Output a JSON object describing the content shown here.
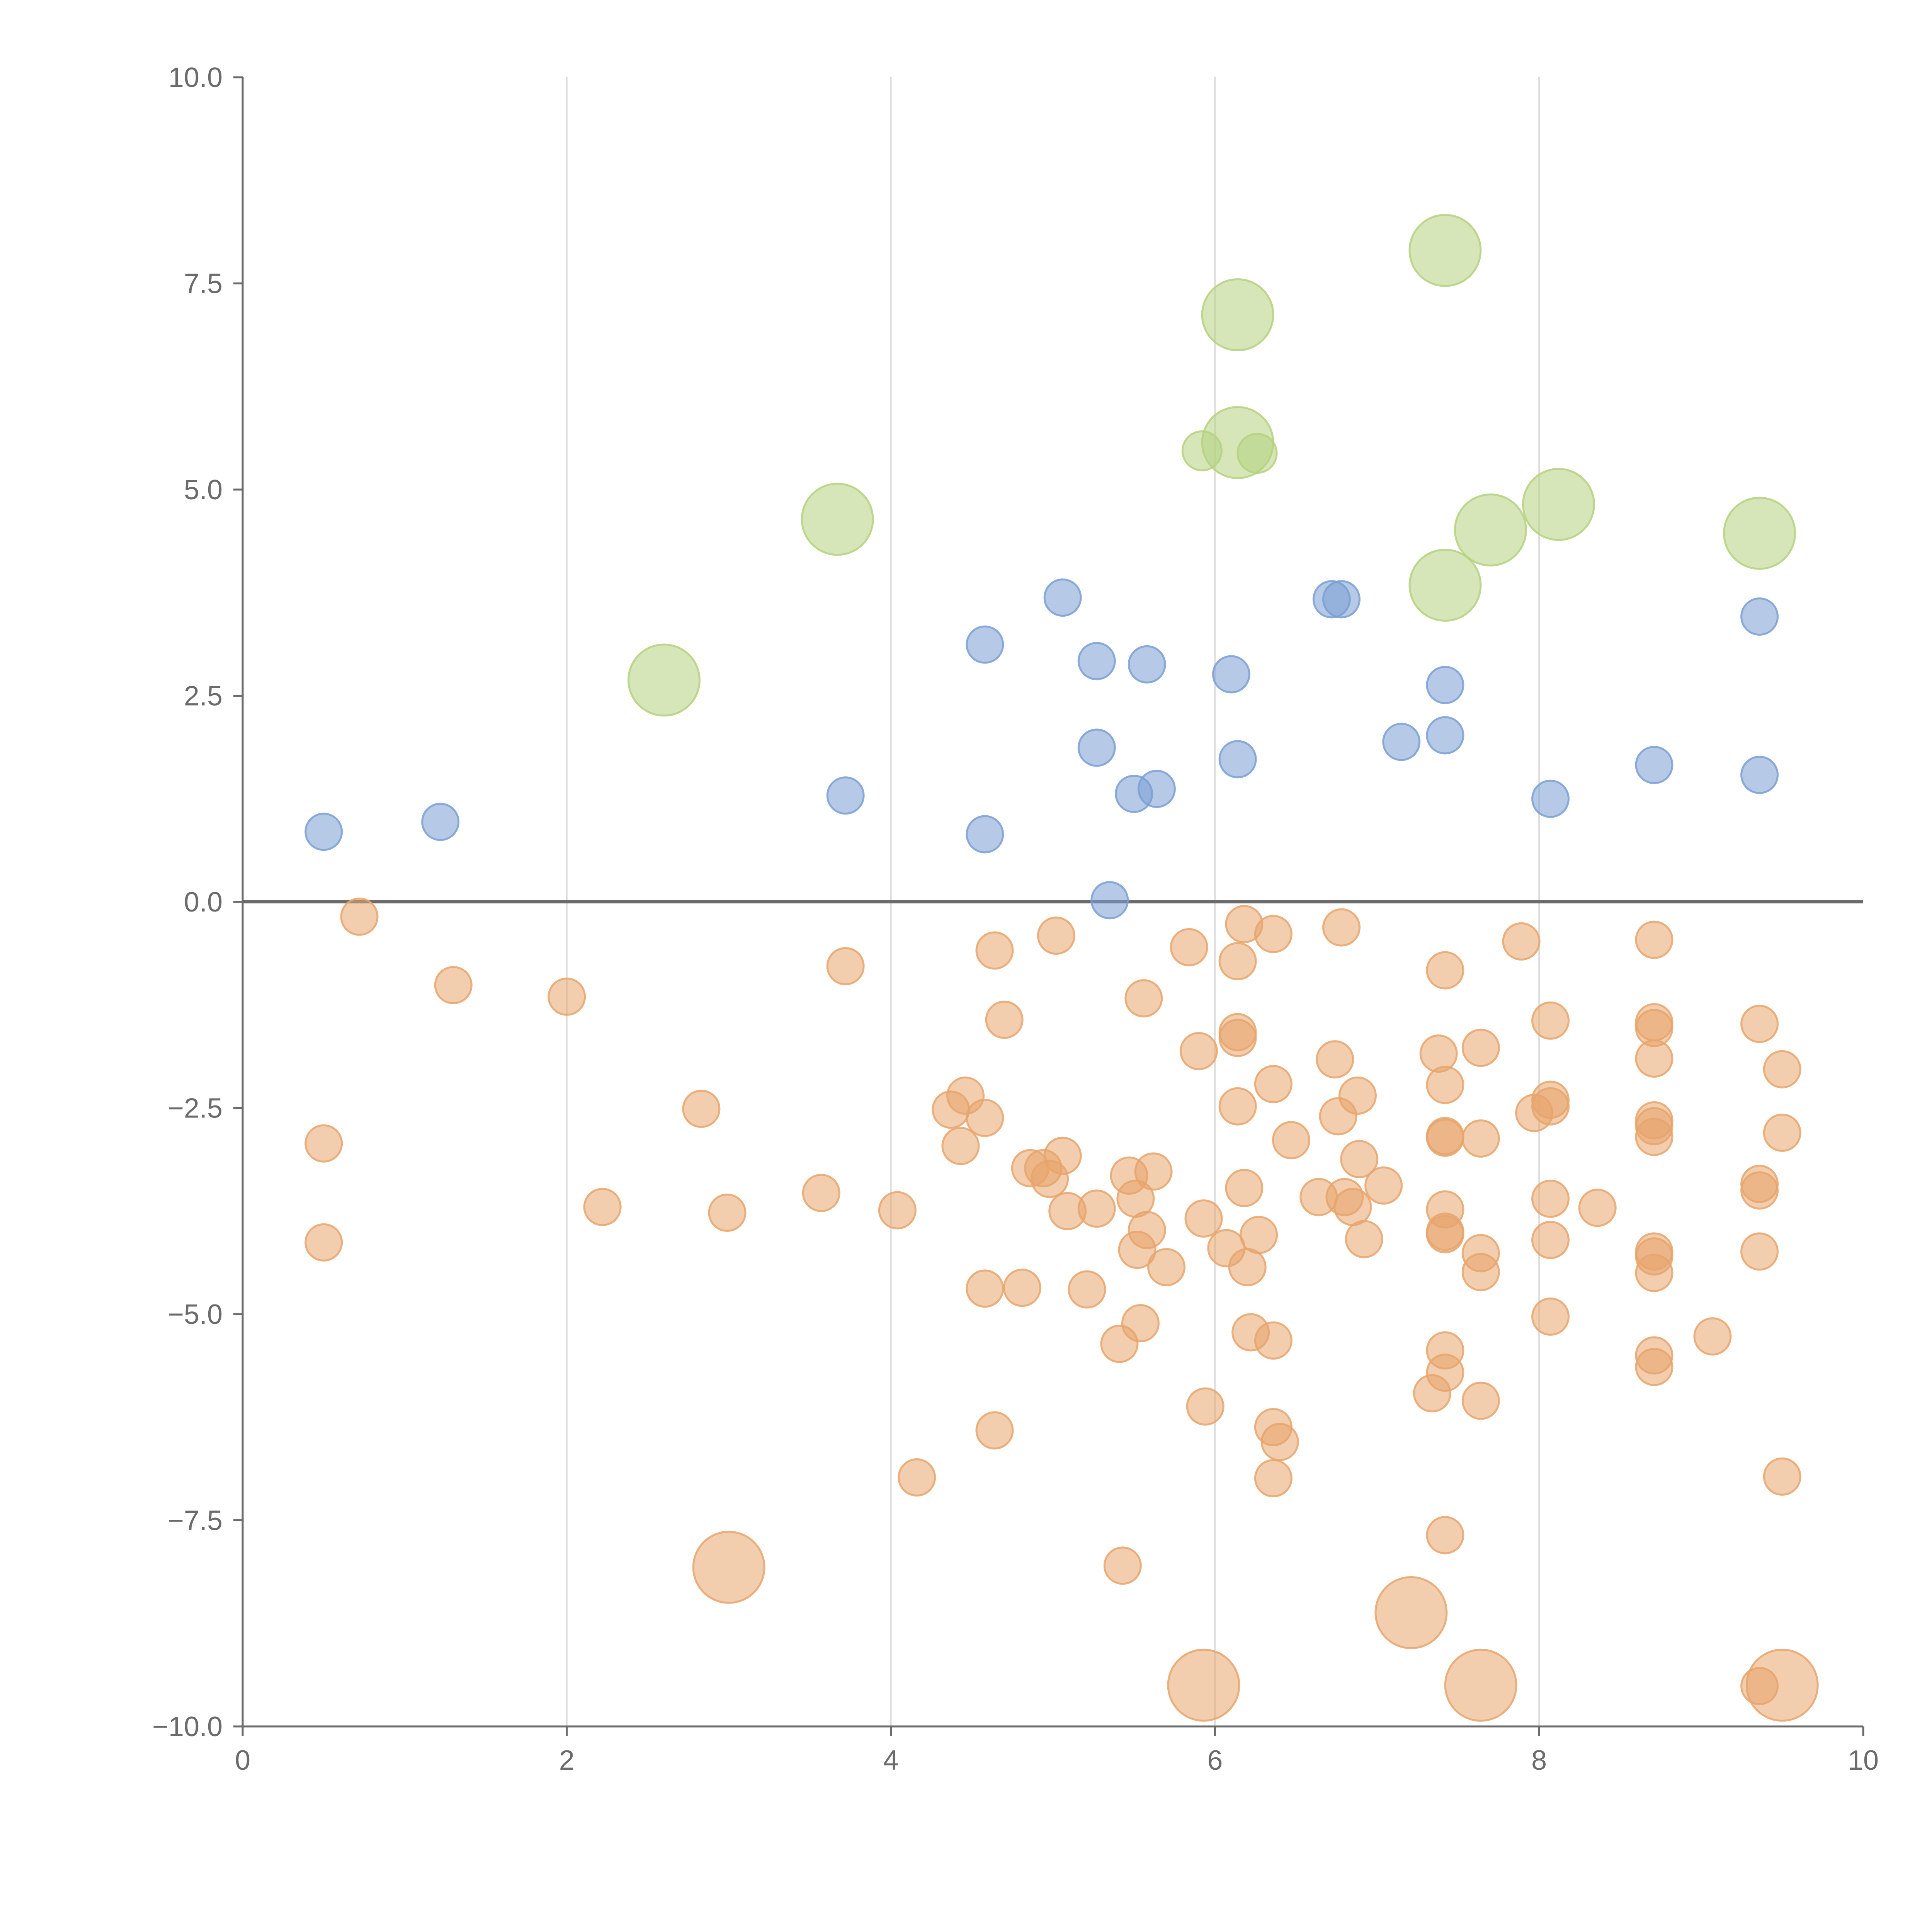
{
  "chart_data": {
    "type": "scatter",
    "title": "",
    "xlabel": "",
    "ylabel": "",
    "xlim": [
      0,
      10
    ],
    "ylim": [
      -10,
      10
    ],
    "x_ticks": [
      "0",
      "2",
      "4",
      "6",
      "8",
      "10"
    ],
    "y_ticks": [
      "10.0",
      "7.5",
      "5.0",
      "2.5",
      "0.0",
      "−2.5",
      "−5.0",
      "−7.5",
      "−10.0"
    ],
    "grid": "vertical",
    "zero_line": true,
    "colors": {
      "blue": "#7a9fd4",
      "orange": "#e8a46c",
      "green": "#b5d17f",
      "axis": "#6b6b6b",
      "grid": "#dcdcdc"
    },
    "series": [
      {
        "name": "blue",
        "color": "#7a9fd4",
        "size": "small",
        "points": [
          [
            0.5,
            0.85
          ],
          [
            1.22,
            0.97
          ],
          [
            3.72,
            1.29
          ],
          [
            4.58,
            0.82
          ],
          [
            4.58,
            3.12
          ],
          [
            5.06,
            3.69
          ],
          [
            5.27,
            2.92
          ],
          [
            5.27,
            1.87
          ],
          [
            5.5,
            1.31
          ],
          [
            5.64,
            1.37
          ],
          [
            5.58,
            2.88
          ],
          [
            5.35,
            0.02
          ],
          [
            6.1,
            2.76
          ],
          [
            6.14,
            1.73
          ],
          [
            6.72,
            3.67
          ],
          [
            6.78,
            3.67
          ],
          [
            7.15,
            1.94
          ],
          [
            7.42,
            2.63
          ],
          [
            7.42,
            2.02
          ],
          [
            8.07,
            1.25
          ],
          [
            8.71,
            1.66
          ],
          [
            9.36,
            3.46
          ],
          [
            9.36,
            1.54
          ]
        ]
      },
      {
        "name": "green",
        "color": "#b5d17f",
        "size": "large",
        "points": [
          [
            2.6,
            2.69,
            1.0
          ],
          [
            3.67,
            4.64,
            1.0
          ],
          [
            5.92,
            5.47,
            0.55
          ],
          [
            6.14,
            5.57,
            1.0
          ],
          [
            6.26,
            5.44,
            0.55
          ],
          [
            6.14,
            7.12,
            1.0
          ],
          [
            7.42,
            7.9,
            1.0
          ],
          [
            7.42,
            3.84,
            1.0
          ],
          [
            7.7,
            4.51,
            1.0
          ],
          [
            8.12,
            4.82,
            1.0
          ],
          [
            9.36,
            4.47,
            1.0
          ]
        ]
      },
      {
        "name": "orange",
        "color": "#e8a46c",
        "size": "small",
        "points": [
          [
            0.72,
            -0.18
          ],
          [
            1.3,
            -1.01
          ],
          [
            2.0,
            -1.15
          ],
          [
            0.5,
            -2.93
          ],
          [
            0.5,
            -4.13
          ],
          [
            2.22,
            -3.7
          ],
          [
            2.83,
            -2.51
          ],
          [
            2.99,
            -3.77
          ],
          [
            3.57,
            -3.53
          ],
          [
            3.72,
            -0.78
          ],
          [
            4.04,
            -3.74
          ],
          [
            4.16,
            -6.98
          ],
          [
            4.37,
            -2.52
          ],
          [
            4.43,
            -2.96
          ],
          [
            4.46,
            -2.35
          ],
          [
            4.58,
            -2.62
          ],
          [
            4.58,
            -4.69
          ],
          [
            4.64,
            -0.59
          ],
          [
            4.64,
            -6.41
          ],
          [
            4.7,
            -1.43
          ],
          [
            4.81,
            -4.68
          ],
          [
            4.86,
            -3.23
          ],
          [
            4.94,
            -3.23
          ],
          [
            4.98,
            -3.36
          ],
          [
            5.02,
            -0.41
          ],
          [
            5.06,
            -3.08
          ],
          [
            5.09,
            -3.75
          ],
          [
            5.21,
            -4.7
          ],
          [
            5.27,
            -3.72
          ],
          [
            5.41,
            -5.36
          ],
          [
            5.43,
            -8.05
          ],
          [
            5.47,
            -3.32
          ],
          [
            5.51,
            -3.6
          ],
          [
            5.52,
            -4.22
          ],
          [
            5.54,
            -5.11
          ],
          [
            5.56,
            -1.17
          ],
          [
            5.58,
            -3.98
          ],
          [
            5.62,
            -3.27
          ],
          [
            5.7,
            -4.43
          ],
          [
            5.84,
            -0.55
          ],
          [
            5.9,
            -1.81
          ],
          [
            5.93,
            -3.84
          ],
          [
            5.94,
            -6.12
          ],
          [
            6.07,
            -4.2
          ],
          [
            6.14,
            -0.72
          ],
          [
            6.14,
            -1.58
          ],
          [
            6.14,
            -1.65
          ],
          [
            6.14,
            -2.48
          ],
          [
            6.18,
            -0.27
          ],
          [
            6.18,
            -3.47
          ],
          [
            6.2,
            -4.43
          ],
          [
            6.22,
            -5.22
          ],
          [
            6.27,
            -4.04
          ],
          [
            6.36,
            -0.39
          ],
          [
            6.36,
            -2.21
          ],
          [
            6.36,
            -5.32
          ],
          [
            6.36,
            -6.37
          ],
          [
            6.4,
            -6.55
          ],
          [
            6.36,
            -6.99
          ],
          [
            6.47,
            -2.89
          ],
          [
            6.64,
            -3.58
          ],
          [
            6.74,
            -1.91
          ],
          [
            6.76,
            -2.6
          ],
          [
            6.78,
            -0.31
          ],
          [
            6.8,
            -3.58
          ],
          [
            6.85,
            -3.7
          ],
          [
            6.88,
            -2.35
          ],
          [
            6.89,
            -3.12
          ],
          [
            6.92,
            -4.09
          ],
          [
            7.04,
            -3.44
          ],
          [
            7.34,
            -5.96
          ],
          [
            7.38,
            -1.84
          ],
          [
            7.42,
            -0.83
          ],
          [
            7.42,
            -2.22
          ],
          [
            7.42,
            -2.86
          ],
          [
            7.42,
            -2.84
          ],
          [
            7.42,
            -3.73
          ],
          [
            7.42,
            -4.0
          ],
          [
            7.42,
            -4.03
          ],
          [
            7.42,
            -5.44
          ],
          [
            7.42,
            -5.71
          ],
          [
            7.42,
            -7.68
          ],
          [
            7.64,
            -1.77
          ],
          [
            7.64,
            -2.87
          ],
          [
            7.64,
            -4.26
          ],
          [
            7.64,
            -4.49
          ],
          [
            7.64,
            -6.05
          ],
          [
            7.89,
            -0.48
          ],
          [
            7.97,
            -2.56
          ],
          [
            8.07,
            -1.44
          ],
          [
            8.07,
            -2.4
          ],
          [
            8.07,
            -2.48
          ],
          [
            8.07,
            -3.6
          ],
          [
            8.07,
            -4.1
          ],
          [
            8.07,
            -5.03
          ],
          [
            8.36,
            -3.71
          ],
          [
            8.71,
            -0.46
          ],
          [
            8.71,
            -1.46
          ],
          [
            8.71,
            -1.53
          ],
          [
            8.71,
            -1.9
          ],
          [
            8.71,
            -2.65
          ],
          [
            8.71,
            -2.72
          ],
          [
            8.71,
            -2.85
          ],
          [
            8.71,
            -4.24
          ],
          [
            8.71,
            -4.3
          ],
          [
            8.71,
            -4.5
          ],
          [
            8.71,
            -5.5
          ],
          [
            8.71,
            -5.64
          ],
          [
            9.07,
            -5.27
          ],
          [
            9.36,
            -1.48
          ],
          [
            9.36,
            -3.42
          ],
          [
            9.36,
            -3.5
          ],
          [
            9.36,
            -4.24
          ],
          [
            9.36,
            -9.51
          ],
          [
            9.5,
            -2.03
          ],
          [
            9.5,
            -2.8
          ],
          [
            9.5,
            -6.97
          ]
        ],
        "large_points": [
          [
            3.0,
            -8.07
          ],
          [
            5.93,
            -9.5
          ],
          [
            7.21,
            -8.62
          ],
          [
            7.64,
            -9.5
          ],
          [
            9.5,
            -9.5
          ]
        ]
      }
    ]
  }
}
